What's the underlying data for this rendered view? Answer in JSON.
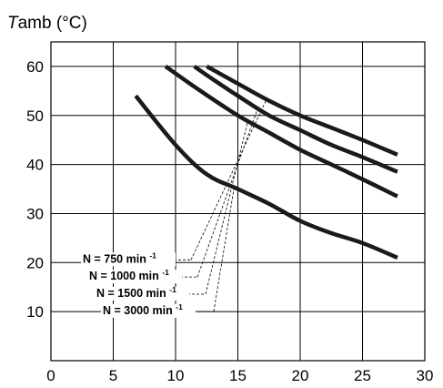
{
  "chart_data": {
    "type": "line",
    "ylabel_italic": "T",
    "ylabel_rest": "amb (°C)",
    "xlabel": "",
    "xlim": [
      0,
      30
    ],
    "ylim": [
      0,
      65
    ],
    "x_ticks": [
      "0",
      "5",
      "10",
      "15",
      "20",
      "25",
      "30"
    ],
    "y_ticks": [
      "10",
      "20",
      "30",
      "40",
      "50",
      "60"
    ],
    "grid": true,
    "series": [
      {
        "name": "N = 750 min",
        "superscript": "-1",
        "line_color": "#1a1a1a",
        "points": [
          [
            12.5,
            60
          ],
          [
            15,
            56.5
          ],
          [
            17.5,
            53
          ],
          [
            20,
            50
          ],
          [
            22.5,
            47.5
          ],
          [
            25,
            45
          ],
          [
            27.8,
            42
          ]
        ]
      },
      {
        "name": "N = 1000 min",
        "superscript": "-1",
        "line_color": "#1a1a1a",
        "points": [
          [
            11.5,
            60
          ],
          [
            13.5,
            56.5
          ],
          [
            15,
            54
          ],
          [
            17.5,
            50
          ],
          [
            20,
            47
          ],
          [
            22.5,
            44
          ],
          [
            25,
            41.5
          ],
          [
            27.8,
            38.5
          ]
        ]
      },
      {
        "name": "N = 1500 min",
        "superscript": "-1",
        "line_color": "#1a1a1a",
        "points": [
          [
            9.2,
            60
          ],
          [
            12,
            55
          ],
          [
            15,
            50
          ],
          [
            17.5,
            46.5
          ],
          [
            20,
            43
          ],
          [
            22.5,
            40
          ],
          [
            25,
            37
          ],
          [
            27.8,
            33.5
          ]
        ]
      },
      {
        "name": "N = 3000 min",
        "superscript": "-1",
        "line_color": "#1a1a1a",
        "points": [
          [
            6.8,
            54
          ],
          [
            10,
            44
          ],
          [
            12.5,
            38
          ],
          [
            15,
            35
          ],
          [
            17.5,
            32
          ],
          [
            20,
            28.5
          ],
          [
            22.5,
            26
          ],
          [
            25,
            24
          ],
          [
            27.8,
            21
          ]
        ]
      }
    ]
  }
}
